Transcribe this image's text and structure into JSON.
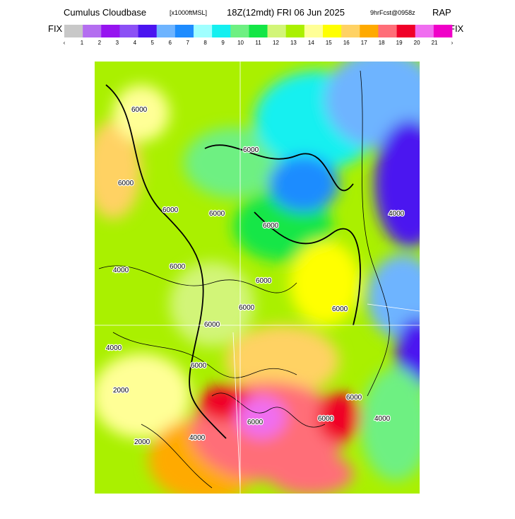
{
  "header": {
    "title": "Cumulus Cloudbase",
    "units": "[x1000ftMSL]",
    "valid": "18Z(12mdt) FRI 06 Jun 2025",
    "forecast": "9hrFcst@0958z",
    "model": "RAP"
  },
  "fix_left": "FIX",
  "fix_right": "FIX",
  "colorbar": {
    "labels": [
      "‹",
      "1",
      "2",
      "3",
      "4",
      "5",
      "6",
      "7",
      "8",
      "9",
      "10",
      "11",
      "12",
      "13",
      "14",
      "15",
      "16",
      "17",
      "18",
      "19",
      "20",
      "21",
      "›"
    ],
    "colors": [
      "#c8c8c8",
      "#b46ef0",
      "#9614f0",
      "#8c50f5",
      "#4b14f0",
      "#6eb4ff",
      "#1e8cff",
      "#a0ffff",
      "#14f0f0",
      "#6ef082",
      "#14e646",
      "#d2f578",
      "#aaf000",
      "#ffff96",
      "#ffff00",
      "#ffd264",
      "#ffaa00",
      "#ff6e78",
      "#f00028",
      "#f06ef0",
      "#f000c8"
    ]
  },
  "map": {
    "contour_labels": [
      "6000",
      "6000",
      "6000",
      "6000",
      "6000",
      "6000",
      "6000",
      "6000",
      "6000",
      "6000",
      "6000",
      "6000",
      "4000",
      "4000",
      "4000",
      "4000",
      "2000",
      "2000",
      "6000",
      "6000",
      "6000",
      "4000"
    ]
  }
}
